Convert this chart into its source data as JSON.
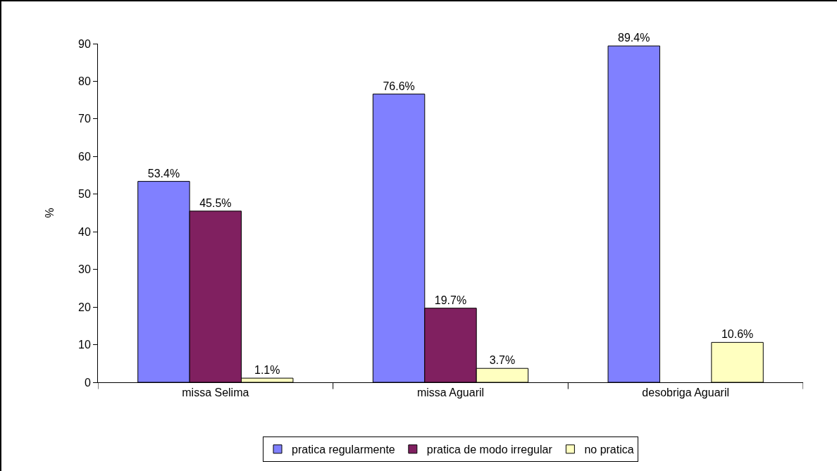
{
  "chart_data": {
    "type": "bar",
    "ylabel": "%",
    "categories": [
      "missa Selima",
      "missa Aguaril",
      "desobriga Aguaril"
    ],
    "series": [
      {
        "name": "pratica regularmente",
        "color": "#8080ff",
        "values": [
          53.4,
          76.6,
          89.4
        ],
        "value_labels": [
          "53.4%",
          "76.6%",
          "89.4%"
        ]
      },
      {
        "name": "pratica de modo irregular",
        "color": "#802060",
        "values": [
          45.5,
          19.7,
          null
        ],
        "value_labels": [
          "45.5%",
          "19.7%",
          null
        ]
      },
      {
        "name": "no pratica",
        "color": "#ffffc0",
        "values": [
          1.1,
          3.7,
          10.6
        ],
        "value_labels": [
          "1.1%",
          "3.7%",
          "10.6%"
        ]
      }
    ],
    "ylim": [
      0,
      90
    ],
    "yticks": [
      0,
      10,
      20,
      30,
      40,
      50,
      60,
      70,
      80,
      90
    ],
    "grid": false,
    "legend": "bottom"
  }
}
